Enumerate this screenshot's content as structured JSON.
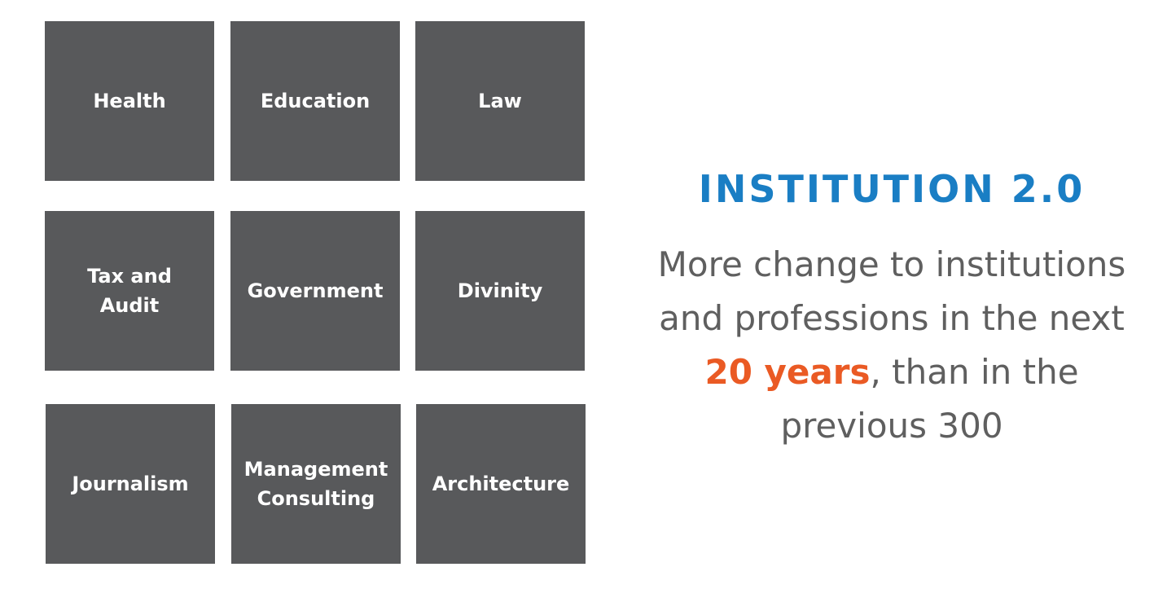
{
  "tiles": [
    {
      "label": "Health"
    },
    {
      "label": "Education"
    },
    {
      "label": "Law"
    },
    {
      "label": "Tax and\nAudit"
    },
    {
      "label": "Government"
    },
    {
      "label": "Divinity"
    },
    {
      "label": "Journalism"
    },
    {
      "label": "Management\nConsulting"
    },
    {
      "label": "Architecture"
    }
  ],
  "headline": "INSTITUTION 2.0",
  "body": {
    "line1": "More change to institutions",
    "line2": "and professions in the next",
    "highlight": "20 years",
    "line3_rest": ", than in the",
    "line4": "previous 300"
  },
  "colors": {
    "tile_bg": "#58595b",
    "headline": "#1a7ec4",
    "highlight": "#ea5a24",
    "body_text": "#5f5f5f"
  }
}
